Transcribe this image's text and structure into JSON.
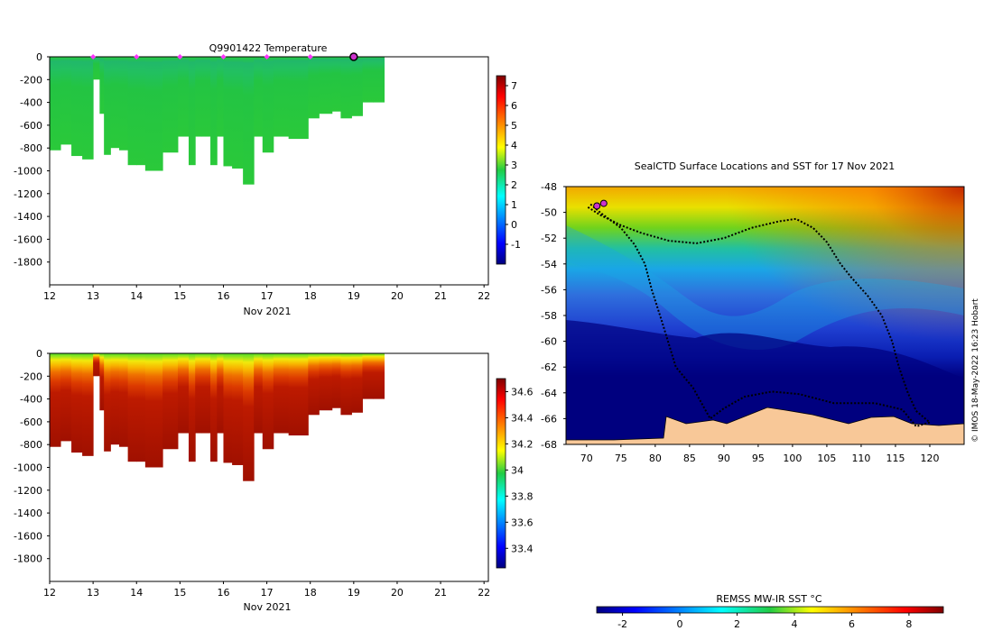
{
  "chart_data": [
    {
      "type": "heatmap",
      "id": "temperature",
      "title": "Q9901422  Temperature",
      "xlabel": "Nov 2021",
      "xticks": [
        12,
        13,
        14,
        15,
        16,
        17,
        18,
        19,
        20,
        21,
        22
      ],
      "xlim": [
        12,
        22.1
      ],
      "ylim": [
        -2000,
        0
      ],
      "yticks": [
        0,
        -200,
        -400,
        -600,
        -800,
        -1000,
        -1200,
        -1400,
        -1600,
        -1800
      ],
      "colorbar": {
        "min": -2,
        "max": 7.5,
        "ticks": [
          7,
          6,
          5,
          4,
          3,
          2,
          1,
          0,
          -1
        ]
      },
      "surface_markers_days": [
        13,
        14,
        15,
        16,
        17,
        18
      ],
      "current_position_day": 19,
      "profiles": [
        {
          "day": 12.0,
          "depth": -820
        },
        {
          "day": 12.25,
          "depth": -770
        },
        {
          "day": 12.5,
          "depth": -870
        },
        {
          "day": 12.75,
          "depth": -900
        },
        {
          "day": 13.0,
          "depth": -200
        },
        {
          "day": 13.15,
          "depth": -500
        },
        {
          "day": 13.25,
          "depth": -860
        },
        {
          "day": 13.4,
          "depth": -800
        },
        {
          "day": 13.6,
          "depth": -820
        },
        {
          "day": 13.8,
          "depth": -950
        },
        {
          "day": 14.0,
          "depth": -950
        },
        {
          "day": 14.2,
          "depth": -1000
        },
        {
          "day": 14.6,
          "depth": -840
        },
        {
          "day": 14.95,
          "depth": -700
        },
        {
          "day": 15.2,
          "depth": -950
        },
        {
          "day": 15.35,
          "depth": -700
        },
        {
          "day": 15.5,
          "depth": -700
        },
        {
          "day": 15.7,
          "depth": -950
        },
        {
          "day": 15.85,
          "depth": -700
        },
        {
          "day": 16.0,
          "depth": -960
        },
        {
          "day": 16.2,
          "depth": -980
        },
        {
          "day": 16.45,
          "depth": -1120
        },
        {
          "day": 16.7,
          "depth": -700
        },
        {
          "day": 16.9,
          "depth": -840
        },
        {
          "day": 17.15,
          "depth": -700
        },
        {
          "day": 17.5,
          "depth": -720
        },
        {
          "day": 17.95,
          "depth": -540
        },
        {
          "day": 18.2,
          "depth": -500
        },
        {
          "day": 18.5,
          "depth": -480
        },
        {
          "day": 18.7,
          "depth": -540
        },
        {
          "day": 18.95,
          "depth": -520
        },
        {
          "day": 19.2,
          "depth": -400
        },
        {
          "day": 19.45,
          "depth": -400
        }
      ],
      "value_range_top_to_bottom": [
        2.2,
        2.8
      ]
    },
    {
      "type": "heatmap",
      "id": "salinity",
      "title": "",
      "xlabel": "Nov 2021",
      "xticks": [
        12,
        13,
        14,
        15,
        16,
        17,
        18,
        19,
        20,
        21,
        22
      ],
      "xlim": [
        12,
        22.1
      ],
      "ylim": [
        -2000,
        0
      ],
      "yticks": [
        0,
        -200,
        -400,
        -600,
        -800,
        -1000,
        -1200,
        -1400,
        -1600,
        -1800
      ],
      "colorbar": {
        "min": 33.25,
        "max": 34.7,
        "ticks": [
          34.6,
          34.4,
          34.2,
          34,
          33.8,
          33.6,
          33.4
        ]
      },
      "value_range_top_to_bottom": [
        33.8,
        34.7
      ]
    },
    {
      "type": "heatmap",
      "id": "sst_map",
      "title": "SealCTD Surface Locations and SST for 17 Nov 2021",
      "xticks": [
        70,
        75,
        80,
        85,
        90,
        95,
        100,
        105,
        110,
        115,
        120
      ],
      "xlim": [
        67,
        125
      ],
      "yticks": [
        -48,
        -50,
        -52,
        -54,
        -56,
        -58,
        -60,
        -62,
        -64,
        -66,
        -68
      ],
      "ylim": [
        -68,
        -48
      ],
      "colorbar": {
        "title": "REMSS MW-IR SST °C",
        "min": -2.9,
        "max": 9.2,
        "ticks": [
          -2,
          0,
          2,
          4,
          6,
          8
        ]
      },
      "track": [
        [
          70.2,
          -49.6
        ],
        [
          72,
          -50.2
        ],
        [
          75,
          -51
        ],
        [
          78,
          -51.6
        ],
        [
          82,
          -52.2
        ],
        [
          86,
          -52.4
        ],
        [
          90,
          -52
        ],
        [
          94,
          -51.2
        ],
        [
          98,
          -50.7
        ],
        [
          100.5,
          -50.5
        ],
        [
          103,
          -51.2
        ],
        [
          105,
          -52.3
        ],
        [
          107,
          -54
        ],
        [
          108.5,
          -55
        ],
        [
          111,
          -56.5
        ],
        [
          113,
          -58
        ],
        [
          114.5,
          -60
        ],
        [
          115.5,
          -62
        ],
        [
          116.8,
          -64
        ],
        [
          118,
          -65.4
        ],
        [
          120,
          -66.3
        ],
        [
          118,
          -66.6
        ],
        [
          116,
          -65.3
        ],
        [
          112,
          -64.8
        ],
        [
          106,
          -64.8
        ],
        [
          101,
          -64.1
        ],
        [
          97,
          -63.9
        ],
        [
          93,
          -64.3
        ],
        [
          90,
          -65.2
        ],
        [
          88,
          -66
        ],
        [
          85.5,
          -63.6
        ],
        [
          83,
          -62
        ],
        [
          81,
          -58.5
        ],
        [
          79.5,
          -56
        ],
        [
          78.5,
          -54
        ],
        [
          77,
          -52.5
        ],
        [
          75,
          -51.2
        ],
        [
          72.2,
          -50.1
        ],
        [
          70.4,
          -49.3
        ]
      ],
      "current_positions": [
        [
          71.5,
          -49.5
        ],
        [
          72.5,
          -49.3
        ]
      ],
      "footnote": "© IMOS 18-May-2022 16:23 Hobart"
    }
  ]
}
